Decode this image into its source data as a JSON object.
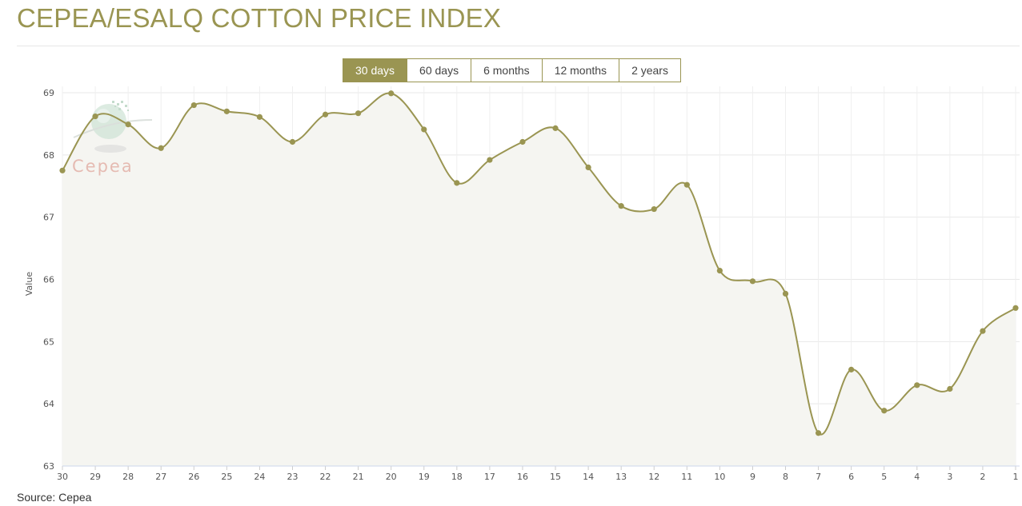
{
  "page": {
    "title": "CEPEA/ESALQ COTTON PRICE INDEX",
    "source": "Source: Cepea",
    "range_tabs": [
      {
        "label": "30 days",
        "active": true
      },
      {
        "label": "60 days",
        "active": false
      },
      {
        "label": "6 months",
        "active": false
      },
      {
        "label": "12 months",
        "active": false
      },
      {
        "label": "2 years",
        "active": false
      }
    ],
    "watermark_text": "Cepea"
  },
  "colors": {
    "accent": "#9a9552",
    "line": "#9a9552",
    "area_fill": "#f5f5f1",
    "grid": "#e8e8e8",
    "watermark": "#e3b1a8"
  },
  "chart_data": {
    "type": "line",
    "title": "CEPEA/ESALQ COTTON PRICE INDEX",
    "xlabel": "",
    "ylabel": "Value",
    "ylim": [
      63,
      69
    ],
    "yticks": [
      63,
      64,
      65,
      66,
      67,
      68,
      69
    ],
    "grid": true,
    "legend": "none",
    "categories": [
      "30",
      "29",
      "28",
      "27",
      "26",
      "25",
      "24",
      "23",
      "22",
      "21",
      "20",
      "19",
      "18",
      "17",
      "16",
      "15",
      "14",
      "13",
      "12",
      "11",
      "10",
      "9",
      "8",
      "7",
      "6",
      "5",
      "4",
      "3",
      "2",
      "1"
    ],
    "series": [
      {
        "values": [
          67.75,
          68.62,
          68.49,
          68.11,
          68.8,
          68.7,
          68.61,
          68.21,
          68.65,
          68.67,
          68.99,
          68.41,
          67.55,
          67.92,
          68.21,
          68.43,
          67.8,
          67.18,
          67.13,
          67.52,
          66.14,
          65.97,
          65.77,
          63.53,
          64.55,
          63.89,
          64.3,
          64.24,
          65.17,
          65.54
        ]
      }
    ]
  }
}
